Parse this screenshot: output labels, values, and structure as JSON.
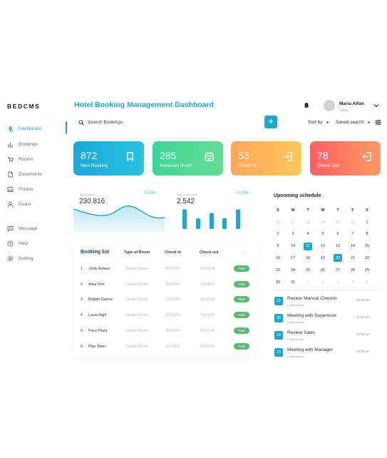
{
  "app": {
    "logo": "BEDCMS",
    "title": "Hotel Booking Management Dashboard"
  },
  "sidebar": {
    "items": [
      {
        "label": "Dashboard",
        "icon": "command-icon",
        "active": true
      },
      {
        "label": "Bookings",
        "icon": "bar-chart-icon"
      },
      {
        "label": "Rooms",
        "icon": "cart-icon"
      },
      {
        "label": "Documents",
        "icon": "document-icon"
      },
      {
        "label": "Photos",
        "icon": "image-icon"
      },
      {
        "label": "Guest",
        "icon": "user-icon"
      },
      {
        "label": "Message",
        "icon": "message-icon"
      },
      {
        "label": "Help",
        "icon": "help-icon"
      },
      {
        "label": "Setting",
        "icon": "gear-icon"
      }
    ]
  },
  "user": {
    "name": "Maria Alfan",
    "role": "Admin"
  },
  "toolbar": {
    "search_placeholder": "Search Bookings",
    "add_label": "+",
    "sort_label": "Sort by",
    "saved_search_label": "Saved search"
  },
  "cards": [
    {
      "value": "872",
      "label": "New Booking",
      "icon": "bookmark-icon",
      "color": "#1ca7da"
    },
    {
      "value": "285",
      "label": "Schedule Room",
      "icon": "calendar-icon",
      "color": "#3dd596"
    },
    {
      "value": "53",
      "label": "Check In",
      "icon": "check-in-icon",
      "color": "#ffa55a"
    },
    {
      "value": "78",
      "label": "Check Out",
      "icon": "check-out-icon",
      "color": "#fd5f62"
    }
  ],
  "sales": {
    "label": "Total Sales",
    "value": "230.816",
    "change": "+2.5%"
  },
  "customers": {
    "label": "Total Customers",
    "value": "2.542",
    "change": "+1.3%"
  },
  "chart_data": [
    {
      "type": "area",
      "title": "Total Sales",
      "color": "#4fc3e3"
    },
    {
      "type": "bar",
      "title": "Total Customers",
      "values": [
        0.55,
        0.3,
        0.45,
        0.3,
        0.55
      ],
      "color": "#1aa9cf"
    }
  ],
  "booking_list": {
    "title": "Booking list",
    "columns": [
      "Type of Room",
      "Check In",
      "Check out"
    ],
    "more": "···",
    "rows": [
      {
        "n": "1",
        "name": "Jordy Astaws",
        "room": "Double Room",
        "in": "01/09/24",
        "out": "02/10/24",
        "status": "Paid"
      },
      {
        "n": "2",
        "name": "Alisa Oon",
        "room": "Double Room",
        "in": "29/09/24",
        "out": "29/09/24",
        "status": "Paid"
      },
      {
        "n": "3",
        "name": "Brigitte Guerra",
        "room": "Double Room",
        "in": "31/09/24",
        "out": "10/10/24",
        "status": "Paid"
      },
      {
        "n": "4",
        "name": "Laura High",
        "room": "Double Room",
        "in": "23/10/24",
        "out": "16/11/24",
        "status": "Paid"
      },
      {
        "n": "5",
        "name": "Paco Plaza",
        "room": "Double Room",
        "in": "30/10/24",
        "out": "05/11/24",
        "status": "Paid"
      },
      {
        "n": "6",
        "name": "Pipe Town",
        "room": "Double Room",
        "in": "31/10/24",
        "out": "01/11/24",
        "status": "Paid"
      }
    ]
  },
  "calendar": {
    "title": "Upcoming schedule",
    "weekdays": [
      "S",
      "M",
      "T",
      "W",
      "T",
      "F",
      "S"
    ],
    "weeks": [
      [
        "26",
        "27",
        "28",
        "29",
        "30",
        "31",
        "1"
      ],
      [
        "2",
        "3",
        "4",
        "5",
        "6",
        "7",
        "8"
      ],
      [
        "9",
        "10",
        "11",
        "12",
        "13",
        "14",
        "15"
      ],
      [
        "16",
        "17",
        "18",
        "19",
        "20",
        "21",
        "22"
      ],
      [
        "23",
        "24",
        "25",
        "26",
        "27",
        "28",
        "29"
      ],
      [
        "30",
        "31",
        "1",
        "2",
        "3",
        "4",
        "5"
      ]
    ],
    "muted": [
      [
        0,
        0
      ],
      [
        0,
        1
      ],
      [
        0,
        2
      ],
      [
        0,
        3
      ],
      [
        0,
        4
      ],
      [
        0,
        5
      ],
      [
        5,
        2
      ],
      [
        5,
        3
      ],
      [
        5,
        4
      ],
      [
        5,
        5
      ],
      [
        5,
        6
      ]
    ],
    "selected": [
      [
        2,
        2
      ],
      [
        3,
        4
      ]
    ]
  },
  "events": [
    {
      "day": "11",
      "title": "Review Manual Checkin",
      "sub": "Lorem ipsum",
      "time": "10:30 am"
    },
    {
      "day": "20",
      "title": "Meeting with Supervisor",
      "sub": "Lorem ipsum",
      "time": "11:00 am"
    },
    {
      "day": "16",
      "title": "Review Sales",
      "sub": "Lorem ipsum",
      "time": "12:00 pm"
    },
    {
      "day": "19",
      "title": "Meeting with Manager",
      "sub": "Lorem ipsum",
      "time": "13:00 pm"
    }
  ]
}
